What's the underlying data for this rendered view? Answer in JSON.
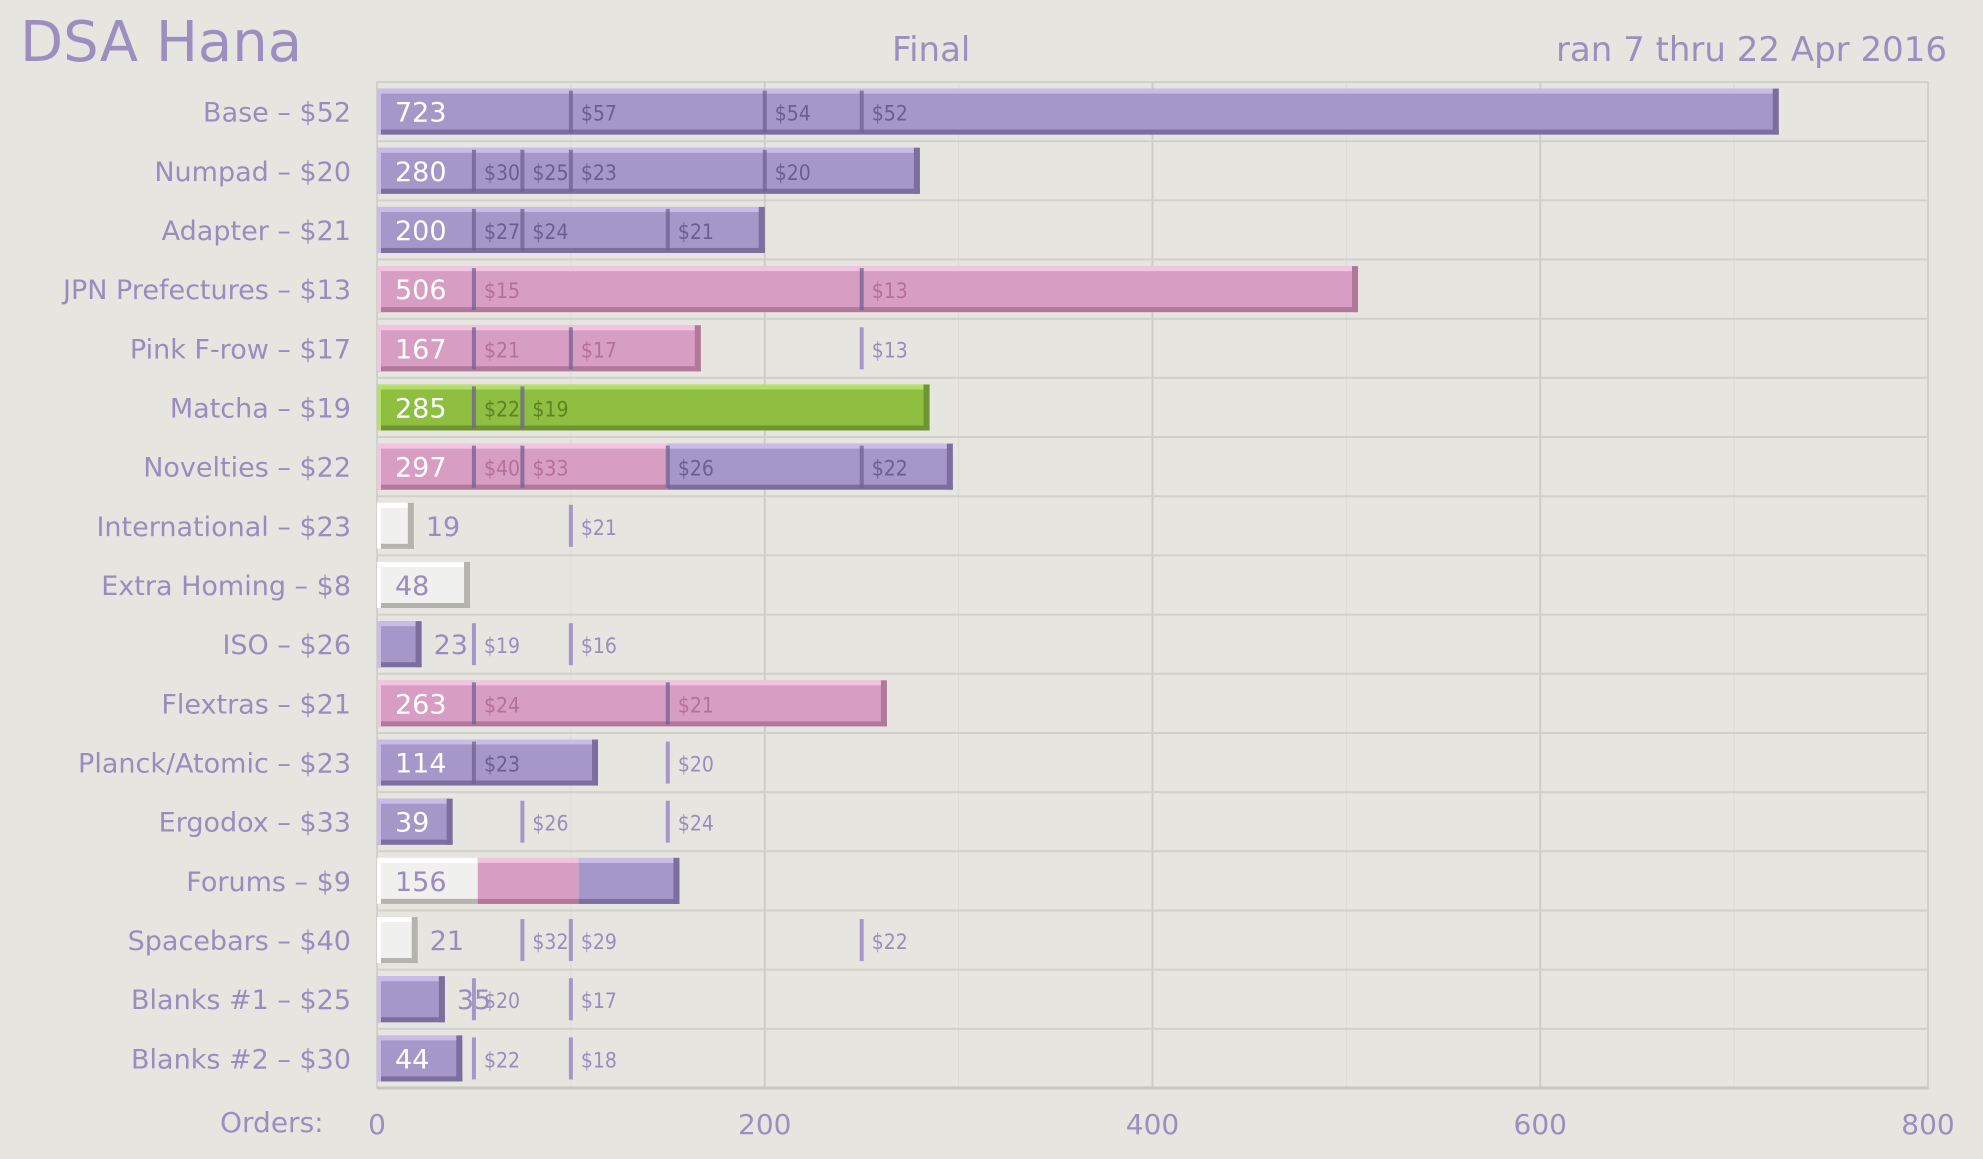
{
  "header": {
    "title": "DSA Hana",
    "subtitle": "Final",
    "date_range": "ran 7 thru 22 Apr 2016"
  },
  "colors": {
    "purple": "#a597c8",
    "pink": "#d89dc3",
    "green": "#8fbf41",
    "white": "#f0f0ee",
    "grid": "#d2d0cb",
    "text": "#9c8fc0"
  },
  "chart_data": {
    "type": "bar",
    "orientation": "horizontal",
    "title": "DSA Hana",
    "subtitle": "Final",
    "xlabel": "Orders:",
    "xlim": [
      0,
      800
    ],
    "xticks": [
      0,
      200,
      400,
      600,
      800
    ],
    "grid": true,
    "categories": [
      "Base – $52",
      "Numpad – $20",
      "Adapter – $21",
      "JPN Prefectures – $13",
      "Pink F-row – $17",
      "Matcha – $19",
      "Novelties – $22",
      "International – $23",
      "Extra Homing – $8",
      "ISO – $26",
      "Flextras – $21",
      "Planck/Atomic – $23",
      "Ergodox – $33",
      "Forums – $9",
      "Spacebars – $40",
      "Blanks #1 – $25",
      "Blanks #2 – $30"
    ],
    "bars": [
      {
        "value": 723,
        "segments": [
          {
            "to": 723,
            "color": "purple"
          }
        ],
        "markers": [
          {
            "x": 100,
            "label": "$57"
          },
          {
            "x": 200,
            "label": "$54"
          },
          {
            "x": 250,
            "label": "$52"
          }
        ]
      },
      {
        "value": 280,
        "segments": [
          {
            "to": 280,
            "color": "purple"
          }
        ],
        "markers": [
          {
            "x": 50,
            "label": "$30"
          },
          {
            "x": 75,
            "label": "$25"
          },
          {
            "x": 100,
            "label": "$23"
          },
          {
            "x": 200,
            "label": "$20"
          }
        ]
      },
      {
        "value": 200,
        "segments": [
          {
            "to": 200,
            "color": "purple"
          }
        ],
        "markers": [
          {
            "x": 50,
            "label": "$27"
          },
          {
            "x": 75,
            "label": "$24"
          },
          {
            "x": 150,
            "label": "$21"
          }
        ]
      },
      {
        "value": 506,
        "segments": [
          {
            "to": 506,
            "color": "pink"
          }
        ],
        "markers": [
          {
            "x": 50,
            "label": "$15"
          },
          {
            "x": 250,
            "label": "$13"
          }
        ]
      },
      {
        "value": 167,
        "segments": [
          {
            "to": 167,
            "color": "pink"
          }
        ],
        "markers": [
          {
            "x": 50,
            "label": "$21"
          },
          {
            "x": 100,
            "label": "$17"
          },
          {
            "x": 250,
            "label": "$13"
          }
        ]
      },
      {
        "value": 285,
        "segments": [
          {
            "to": 285,
            "color": "green"
          }
        ],
        "markers": [
          {
            "x": 50,
            "label": "$22"
          },
          {
            "x": 75,
            "label": "$19"
          }
        ]
      },
      {
        "value": 297,
        "segments": [
          {
            "to": 150,
            "color": "pink"
          },
          {
            "to": 297,
            "color": "purple"
          }
        ],
        "markers": [
          {
            "x": 50,
            "label": "$40"
          },
          {
            "x": 75,
            "label": "$33"
          },
          {
            "x": 150,
            "label": "$26"
          },
          {
            "x": 250,
            "label": "$22"
          }
        ]
      },
      {
        "value": 19,
        "segments": [
          {
            "to": 19,
            "color": "white"
          }
        ],
        "markers": [
          {
            "x": 100,
            "label": "$21"
          }
        ]
      },
      {
        "value": 48,
        "segments": [
          {
            "to": 48,
            "color": "white"
          }
        ],
        "markers": []
      },
      {
        "value": 23,
        "segments": [
          {
            "to": 23,
            "color": "purple"
          }
        ],
        "markers": [
          {
            "x": 50,
            "label": "$19"
          },
          {
            "x": 100,
            "label": "$16"
          }
        ]
      },
      {
        "value": 263,
        "segments": [
          {
            "to": 263,
            "color": "pink"
          }
        ],
        "markers": [
          {
            "x": 50,
            "label": "$24"
          },
          {
            "x": 150,
            "label": "$21"
          }
        ]
      },
      {
        "value": 114,
        "segments": [
          {
            "to": 114,
            "color": "purple"
          }
        ],
        "markers": [
          {
            "x": 50,
            "label": "$23"
          },
          {
            "x": 150,
            "label": "$20"
          }
        ]
      },
      {
        "value": 39,
        "segments": [
          {
            "to": 39,
            "color": "purple"
          }
        ],
        "markers": [
          {
            "x": 75,
            "label": "$26"
          },
          {
            "x": 150,
            "label": "$24"
          }
        ]
      },
      {
        "value": 156,
        "segments": [
          {
            "to": 52,
            "color": "white"
          },
          {
            "to": 104,
            "color": "pink"
          },
          {
            "to": 156,
            "color": "purple"
          }
        ],
        "markers": []
      },
      {
        "value": 21,
        "segments": [
          {
            "to": 21,
            "color": "white"
          }
        ],
        "markers": [
          {
            "x": 75,
            "label": "$32"
          },
          {
            "x": 100,
            "label": "$29"
          },
          {
            "x": 250,
            "label": "$22"
          }
        ]
      },
      {
        "value": 35,
        "segments": [
          {
            "to": 35,
            "color": "purple"
          }
        ],
        "markers": [
          {
            "x": 50,
            "label": "$20"
          },
          {
            "x": 100,
            "label": "$17"
          }
        ]
      },
      {
        "value": 44,
        "segments": [
          {
            "to": 44,
            "color": "purple"
          }
        ],
        "markers": [
          {
            "x": 50,
            "label": "$22"
          },
          {
            "x": 100,
            "label": "$18"
          }
        ]
      }
    ]
  }
}
